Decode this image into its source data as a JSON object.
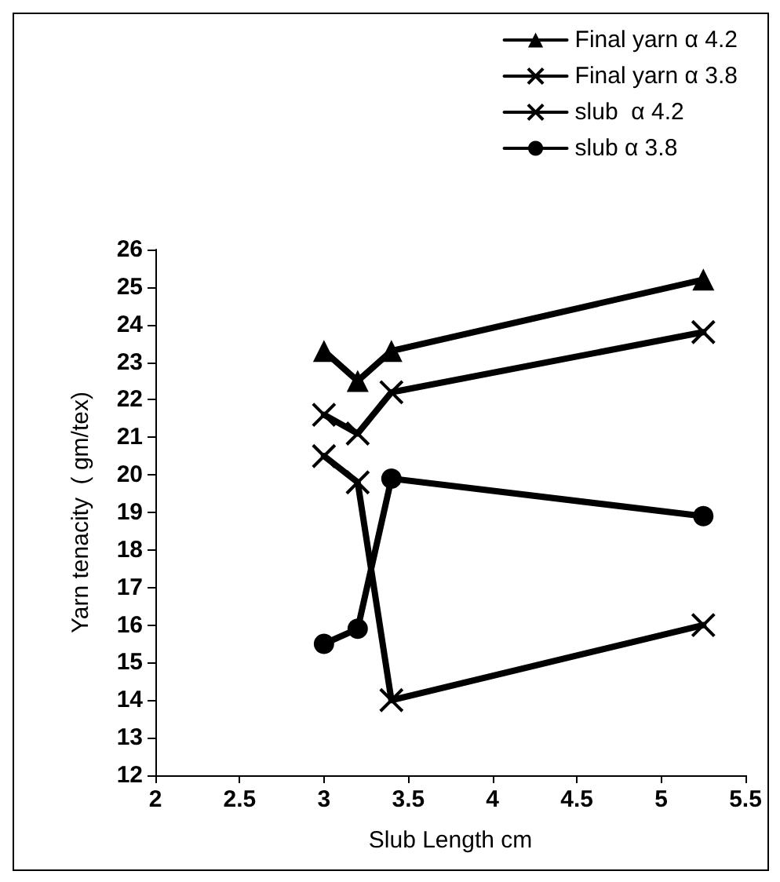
{
  "chart_data": {
    "type": "line",
    "xlabel": "Slub Length cm",
    "ylabel": "Yarn tenacity  ( gm/tex)",
    "xlim": [
      2,
      5.5
    ],
    "xticks": [
      2,
      2.5,
      3,
      3.5,
      4,
      4.5,
      5,
      5.5
    ],
    "ylim": [
      12,
      26
    ],
    "yticks": [
      12,
      13,
      14,
      15,
      16,
      17,
      18,
      19,
      20,
      21,
      22,
      23,
      24,
      25,
      26
    ],
    "grid": false,
    "legend": "top right",
    "series": [
      {
        "name": "Final yarn α 4.2",
        "color": "#000000",
        "marker": "triangle",
        "x": [
          3,
          3.2,
          3.4,
          5.25
        ],
        "values": [
          23.3,
          22.5,
          23.3,
          25.2
        ]
      },
      {
        "name": "Final yarn α 3.8",
        "color": "#000000",
        "marker": "cross",
        "x": [
          3,
          3.2,
          3.4,
          5.25
        ],
        "values": [
          21.6,
          21.1,
          22.2,
          23.8
        ]
      },
      {
        "name": "slub  α 4.2",
        "color": "#000000",
        "marker": "cross",
        "x": [
          3,
          3.2,
          3.4,
          5.25
        ],
        "values": [
          20.5,
          19.8,
          14.0,
          16.0
        ]
      },
      {
        "name": "slub α 3.8",
        "color": "#000000",
        "marker": "circle",
        "x": [
          3,
          3.2,
          3.4,
          5.25
        ],
        "values": [
          15.5,
          15.9,
          19.9,
          18.9
        ]
      }
    ]
  }
}
